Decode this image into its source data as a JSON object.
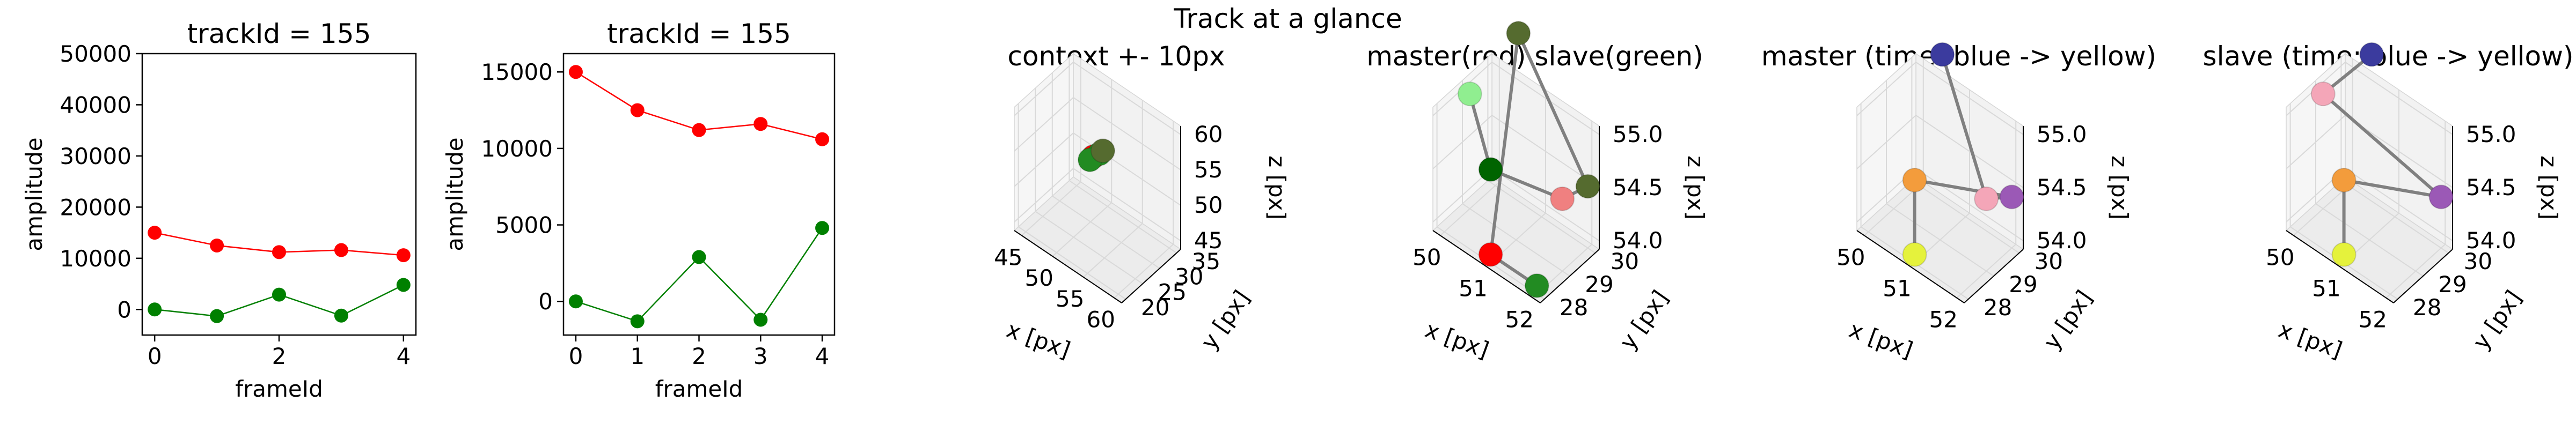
{
  "figure": {
    "suptitle": "Track at a glance"
  },
  "chart_data": [
    {
      "type": "line",
      "title": "trackId = 155",
      "xlabel": "frameId",
      "ylabel": "amplitude",
      "xlim": [
        -0.2,
        4.2
      ],
      "ylim": [
        -5000,
        50000
      ],
      "x_ticks": [
        0,
        2,
        4
      ],
      "y_ticks": [
        0,
        10000,
        20000,
        30000,
        40000,
        50000
      ],
      "grid": false,
      "x": [
        0,
        1,
        2,
        3,
        4
      ],
      "series": [
        {
          "color": "#ff0000",
          "values": [
            15000,
            12500,
            11200,
            11600,
            10600
          ]
        },
        {
          "color": "#008000",
          "values": [
            0,
            -1300,
            2900,
            -1200,
            4800
          ]
        }
      ]
    },
    {
      "type": "line",
      "title": "trackId = 155",
      "xlabel": "frameId",
      "ylabel": "amplitude",
      "xlim": [
        -0.2,
        4.2
      ],
      "ylim": [
        -2200,
        16200
      ],
      "x_ticks": [
        0,
        1,
        2,
        3,
        4
      ],
      "y_ticks": [
        0,
        5000,
        10000,
        15000
      ],
      "grid": false,
      "x": [
        0,
        1,
        2,
        3,
        4
      ],
      "series": [
        {
          "color": "#ff0000",
          "values": [
            15000,
            12500,
            11200,
            11600,
            10600
          ]
        },
        {
          "color": "#008000",
          "values": [
            0,
            -1300,
            2900,
            -1200,
            4800
          ]
        }
      ]
    },
    {
      "type": "scatter",
      "title": "context +- 10px",
      "xlabel": "x [px]",
      "ylabel": "y [px]",
      "zlabel": "z [px]",
      "x_ticks": [
        45,
        50,
        55,
        60
      ],
      "y_ticks": [
        20,
        25,
        30,
        35
      ],
      "z_ticks": [
        45,
        50,
        55,
        60
      ],
      "points": [
        {
          "x": 51,
          "y": 29,
          "z": 54,
          "color": "#90ee90"
        },
        {
          "x": 51,
          "y": 29,
          "z": 54,
          "color": "#ff0000"
        },
        {
          "x": 52,
          "y": 29,
          "z": 55,
          "color": "#228b22"
        },
        {
          "x": 51,
          "y": 28,
          "z": 54,
          "color": "#228b22"
        },
        {
          "x": 52,
          "y": 30,
          "z": 55,
          "color": "#556b2f"
        }
      ]
    },
    {
      "type": "scatter",
      "title": "master(red) slave(green)",
      "xlabel": "x [px]",
      "ylabel": "y [px]",
      "zlabel": "z [px]",
      "x_ticks": [
        50,
        51,
        52
      ],
      "y_ticks": [
        28,
        29,
        30
      ],
      "z_ticks": [
        54.0,
        54.5,
        55.0
      ],
      "connector_color": "#808080",
      "points": [
        {
          "x": 50,
          "y": 29,
          "z": 55.0,
          "color": "#90ee90"
        },
        {
          "x": 51,
          "y": 28,
          "z": 54.8,
          "color": "#006400"
        },
        {
          "x": 52,
          "y": 29,
          "z": 54.6,
          "color": "#f08080"
        },
        {
          "x": 52,
          "y": 30,
          "z": 54.5,
          "color": "#556b2f"
        },
        {
          "x": 50.5,
          "y": 30,
          "z": 55.5,
          "color": "#556b2f"
        },
        {
          "x": 51,
          "y": 28,
          "z": 54.0,
          "color": "#ff0000"
        },
        {
          "x": 52,
          "y": 28,
          "z": 54.0,
          "color": "#228b22"
        }
      ]
    },
    {
      "type": "scatter",
      "title": "master (time: blue -> yellow)",
      "xlabel": "x [px]",
      "ylabel": "y [px]",
      "zlabel": "z [px]",
      "x_ticks": [
        50,
        51,
        52
      ],
      "y_ticks": [
        28,
        29,
        30
      ],
      "z_ticks": [
        54.0,
        54.5,
        55.0
      ],
      "connector_color": "#808080",
      "points": [
        {
          "x": 50.5,
          "y": 30,
          "z": 55.3,
          "color": "#3b3b9e"
        },
        {
          "x": 52,
          "y": 29,
          "z": 54.6,
          "color": "#f4a6b8"
        },
        {
          "x": 52,
          "y": 30,
          "z": 54.4,
          "color": "#9b59b6"
        },
        {
          "x": 51,
          "y": 28,
          "z": 54.7,
          "color": "#f39c3c"
        },
        {
          "x": 51,
          "y": 28,
          "z": 54.0,
          "color": "#e5f23c"
        }
      ]
    },
    {
      "type": "scatter",
      "title": "slave (time: blue -> yellow)",
      "xlabel": "x [px]",
      "ylabel": "y [px]",
      "zlabel": "z [px]",
      "x_ticks": [
        50,
        51,
        52
      ],
      "y_ticks": [
        28,
        29,
        30
      ],
      "z_ticks": [
        54.0,
        54.5,
        55.0
      ],
      "connector_color": "#808080",
      "points": [
        {
          "x": 50.5,
          "y": 30,
          "z": 55.3,
          "color": "#3b3b9e"
        },
        {
          "x": 50,
          "y": 29,
          "z": 55.0,
          "color": "#f4a6b8"
        },
        {
          "x": 52,
          "y": 30,
          "z": 54.4,
          "color": "#9b59b6"
        },
        {
          "x": 51,
          "y": 28,
          "z": 54.7,
          "color": "#f39c3c"
        },
        {
          "x": 51,
          "y": 28,
          "z": 54.0,
          "color": "#e5f23c"
        }
      ]
    }
  ]
}
